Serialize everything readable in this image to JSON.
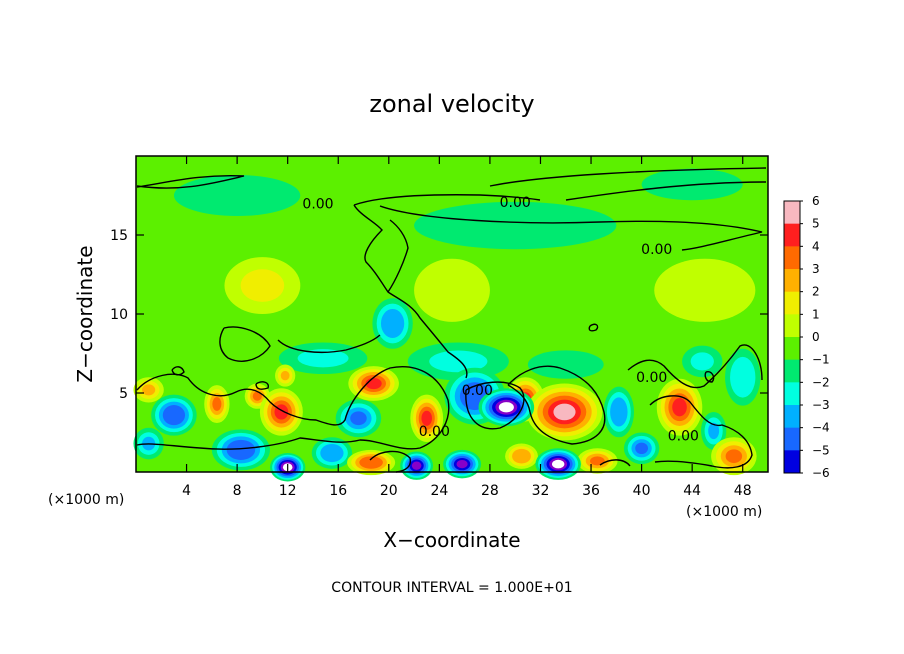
{
  "chart_data": {
    "type": "heatmap",
    "title": "zonal velocity",
    "xlabel": "X−coordinate",
    "ylabel": "Z−coordinate",
    "x_unit_left": "(×1000 m)",
    "x_unit_right": "(×1000 m)",
    "footnote": "CONTOUR INTERVAL = 1.000E+01",
    "x_ticks": [
      4,
      8,
      12,
      16,
      20,
      24,
      28,
      32,
      36,
      40,
      44,
      48
    ],
    "xlim": [
      0,
      50
    ],
    "y_ticks": [
      5,
      10,
      15
    ],
    "ylim": [
      0,
      20
    ],
    "colorbar": {
      "levels": [
        6,
        5,
        4,
        3,
        2,
        1,
        0,
        -1,
        -2,
        -3,
        -4,
        -5,
        -6
      ],
      "colors": [
        "#f8b8c0",
        "#ff1f1f",
        "#ff6a00",
        "#ffb000",
        "#f0ee00",
        "#c0ff00",
        "#5cf000",
        "#00ea70",
        "#00ffe0",
        "#00b0ff",
        "#1868ff",
        "#0000e0",
        "#8800c8"
      ]
    },
    "contour_labels": [
      {
        "text": "0.00",
        "x": 14.4,
        "y": 17.0
      },
      {
        "text": "0.00",
        "x": 30.0,
        "y": 17.1
      },
      {
        "text": "0.00",
        "x": 41.2,
        "y": 14.1
      },
      {
        "text": "0.00",
        "x": 27.0,
        "y": 5.2
      },
      {
        "text": "0.00",
        "x": 40.8,
        "y": 6.0
      },
      {
        "text": "0.00",
        "x": 23.6,
        "y": 2.6
      },
      {
        "text": "0.00",
        "x": 43.3,
        "y": 2.3
      }
    ],
    "blobs": [
      {
        "x": 29.3,
        "y": 4.1,
        "v": -6.3,
        "rx": 2.2,
        "ry": 1.2
      },
      {
        "x": 26.8,
        "y": 4.8,
        "v": -4.5,
        "rx": 2.4,
        "ry": 1.8
      },
      {
        "x": 12.0,
        "y": 0.3,
        "v": -6.2,
        "rx": 1.4,
        "ry": 0.9
      },
      {
        "x": 22.2,
        "y": 0.4,
        "v": -6.0,
        "rx": 1.3,
        "ry": 0.9
      },
      {
        "x": 25.8,
        "y": 0.5,
        "v": -6.0,
        "rx": 1.5,
        "ry": 0.9
      },
      {
        "x": 33.4,
        "y": 0.5,
        "v": -6.2,
        "rx": 1.8,
        "ry": 1.0
      },
      {
        "x": 33.9,
        "y": 3.8,
        "v": 5.5,
        "rx": 3.0,
        "ry": 1.8
      },
      {
        "x": 30.8,
        "y": 4.6,
        "v": 4.5,
        "rx": 1.5,
        "ry": 1.4
      },
      {
        "x": 18.8,
        "y": 5.6,
        "v": 4.8,
        "rx": 2.0,
        "ry": 1.1
      },
      {
        "x": 23.0,
        "y": 3.4,
        "v": 4.6,
        "rx": 1.3,
        "ry": 1.5
      },
      {
        "x": 11.5,
        "y": 3.8,
        "v": 4.5,
        "rx": 1.7,
        "ry": 1.5
      },
      {
        "x": 9.6,
        "y": 4.8,
        "v": 3.8,
        "rx": 1.0,
        "ry": 0.8
      },
      {
        "x": 43.0,
        "y": 4.1,
        "v": 4.6,
        "rx": 1.8,
        "ry": 1.8
      },
      {
        "x": 47.3,
        "y": 1.0,
        "v": 4.0,
        "rx": 1.8,
        "ry": 1.2
      },
      {
        "x": 6.4,
        "y": 4.3,
        "v": 3.8,
        "rx": 1.0,
        "ry": 1.2
      },
      {
        "x": 18.6,
        "y": 0.6,
        "v": 4.2,
        "rx": 1.9,
        "ry": 0.8
      },
      {
        "x": 36.5,
        "y": 0.7,
        "v": 3.5,
        "rx": 1.6,
        "ry": 0.8
      },
      {
        "x": 1.0,
        "y": 5.2,
        "v": 3.0,
        "rx": 1.2,
        "ry": 0.8
      },
      {
        "x": 11.8,
        "y": 6.1,
        "v": 3.0,
        "rx": 0.8,
        "ry": 0.7
      },
      {
        "x": 30.5,
        "y": 1.0,
        "v": 3.2,
        "rx": 1.3,
        "ry": 0.8
      },
      {
        "x": 20.3,
        "y": 9.4,
        "v": -3.5,
        "rx": 1.6,
        "ry": 1.6
      },
      {
        "x": 3.0,
        "y": 3.6,
        "v": -4.2,
        "rx": 1.8,
        "ry": 1.3
      },
      {
        "x": 1.0,
        "y": 1.8,
        "v": -3.0,
        "rx": 1.2,
        "ry": 1.0
      },
      {
        "x": 8.3,
        "y": 1.4,
        "v": -4.2,
        "rx": 2.3,
        "ry": 1.3
      },
      {
        "x": 17.6,
        "y": 3.4,
        "v": -3.8,
        "rx": 1.8,
        "ry": 1.2
      },
      {
        "x": 15.5,
        "y": 1.2,
        "v": -3.5,
        "rx": 1.6,
        "ry": 1.0
      },
      {
        "x": 38.2,
        "y": 3.8,
        "v": -3.5,
        "rx": 1.2,
        "ry": 1.6
      },
      {
        "x": 40.0,
        "y": 1.5,
        "v": -3.8,
        "rx": 1.4,
        "ry": 1.0
      },
      {
        "x": 45.7,
        "y": 2.6,
        "v": -3.0,
        "rx": 1.0,
        "ry": 1.2
      },
      {
        "x": 48.0,
        "y": 6.0,
        "v": -2.2,
        "rx": 1.4,
        "ry": 1.8
      },
      {
        "x": 44.8,
        "y": 7.0,
        "v": -2.0,
        "rx": 1.6,
        "ry": 1.0
      },
      {
        "x": 25.5,
        "y": 7.0,
        "v": -1.6,
        "rx": 4.0,
        "ry": 1.2
      },
      {
        "x": 14.8,
        "y": 7.2,
        "v": -1.6,
        "rx": 3.5,
        "ry": 1.0
      },
      {
        "x": 34.0,
        "y": 6.8,
        "v": -1.2,
        "rx": 3.0,
        "ry": 0.9
      },
      {
        "x": 10.0,
        "y": 11.8,
        "v": 1.6,
        "rx": 3.0,
        "ry": 1.8
      },
      {
        "x": 25.0,
        "y": 11.5,
        "v": 1.1,
        "rx": 3.0,
        "ry": 2.0
      },
      {
        "x": 45.0,
        "y": 11.5,
        "v": 1.2,
        "rx": 4.0,
        "ry": 2.0
      },
      {
        "x": 30.0,
        "y": 15.6,
        "v": -0.9,
        "rx": 8.0,
        "ry": 1.5
      },
      {
        "x": 8.0,
        "y": 17.5,
        "v": -0.8,
        "rx": 5.0,
        "ry": 1.3
      },
      {
        "x": 44.0,
        "y": 18.2,
        "v": -0.8,
        "rx": 4.0,
        "ry": 1.0
      }
    ]
  }
}
